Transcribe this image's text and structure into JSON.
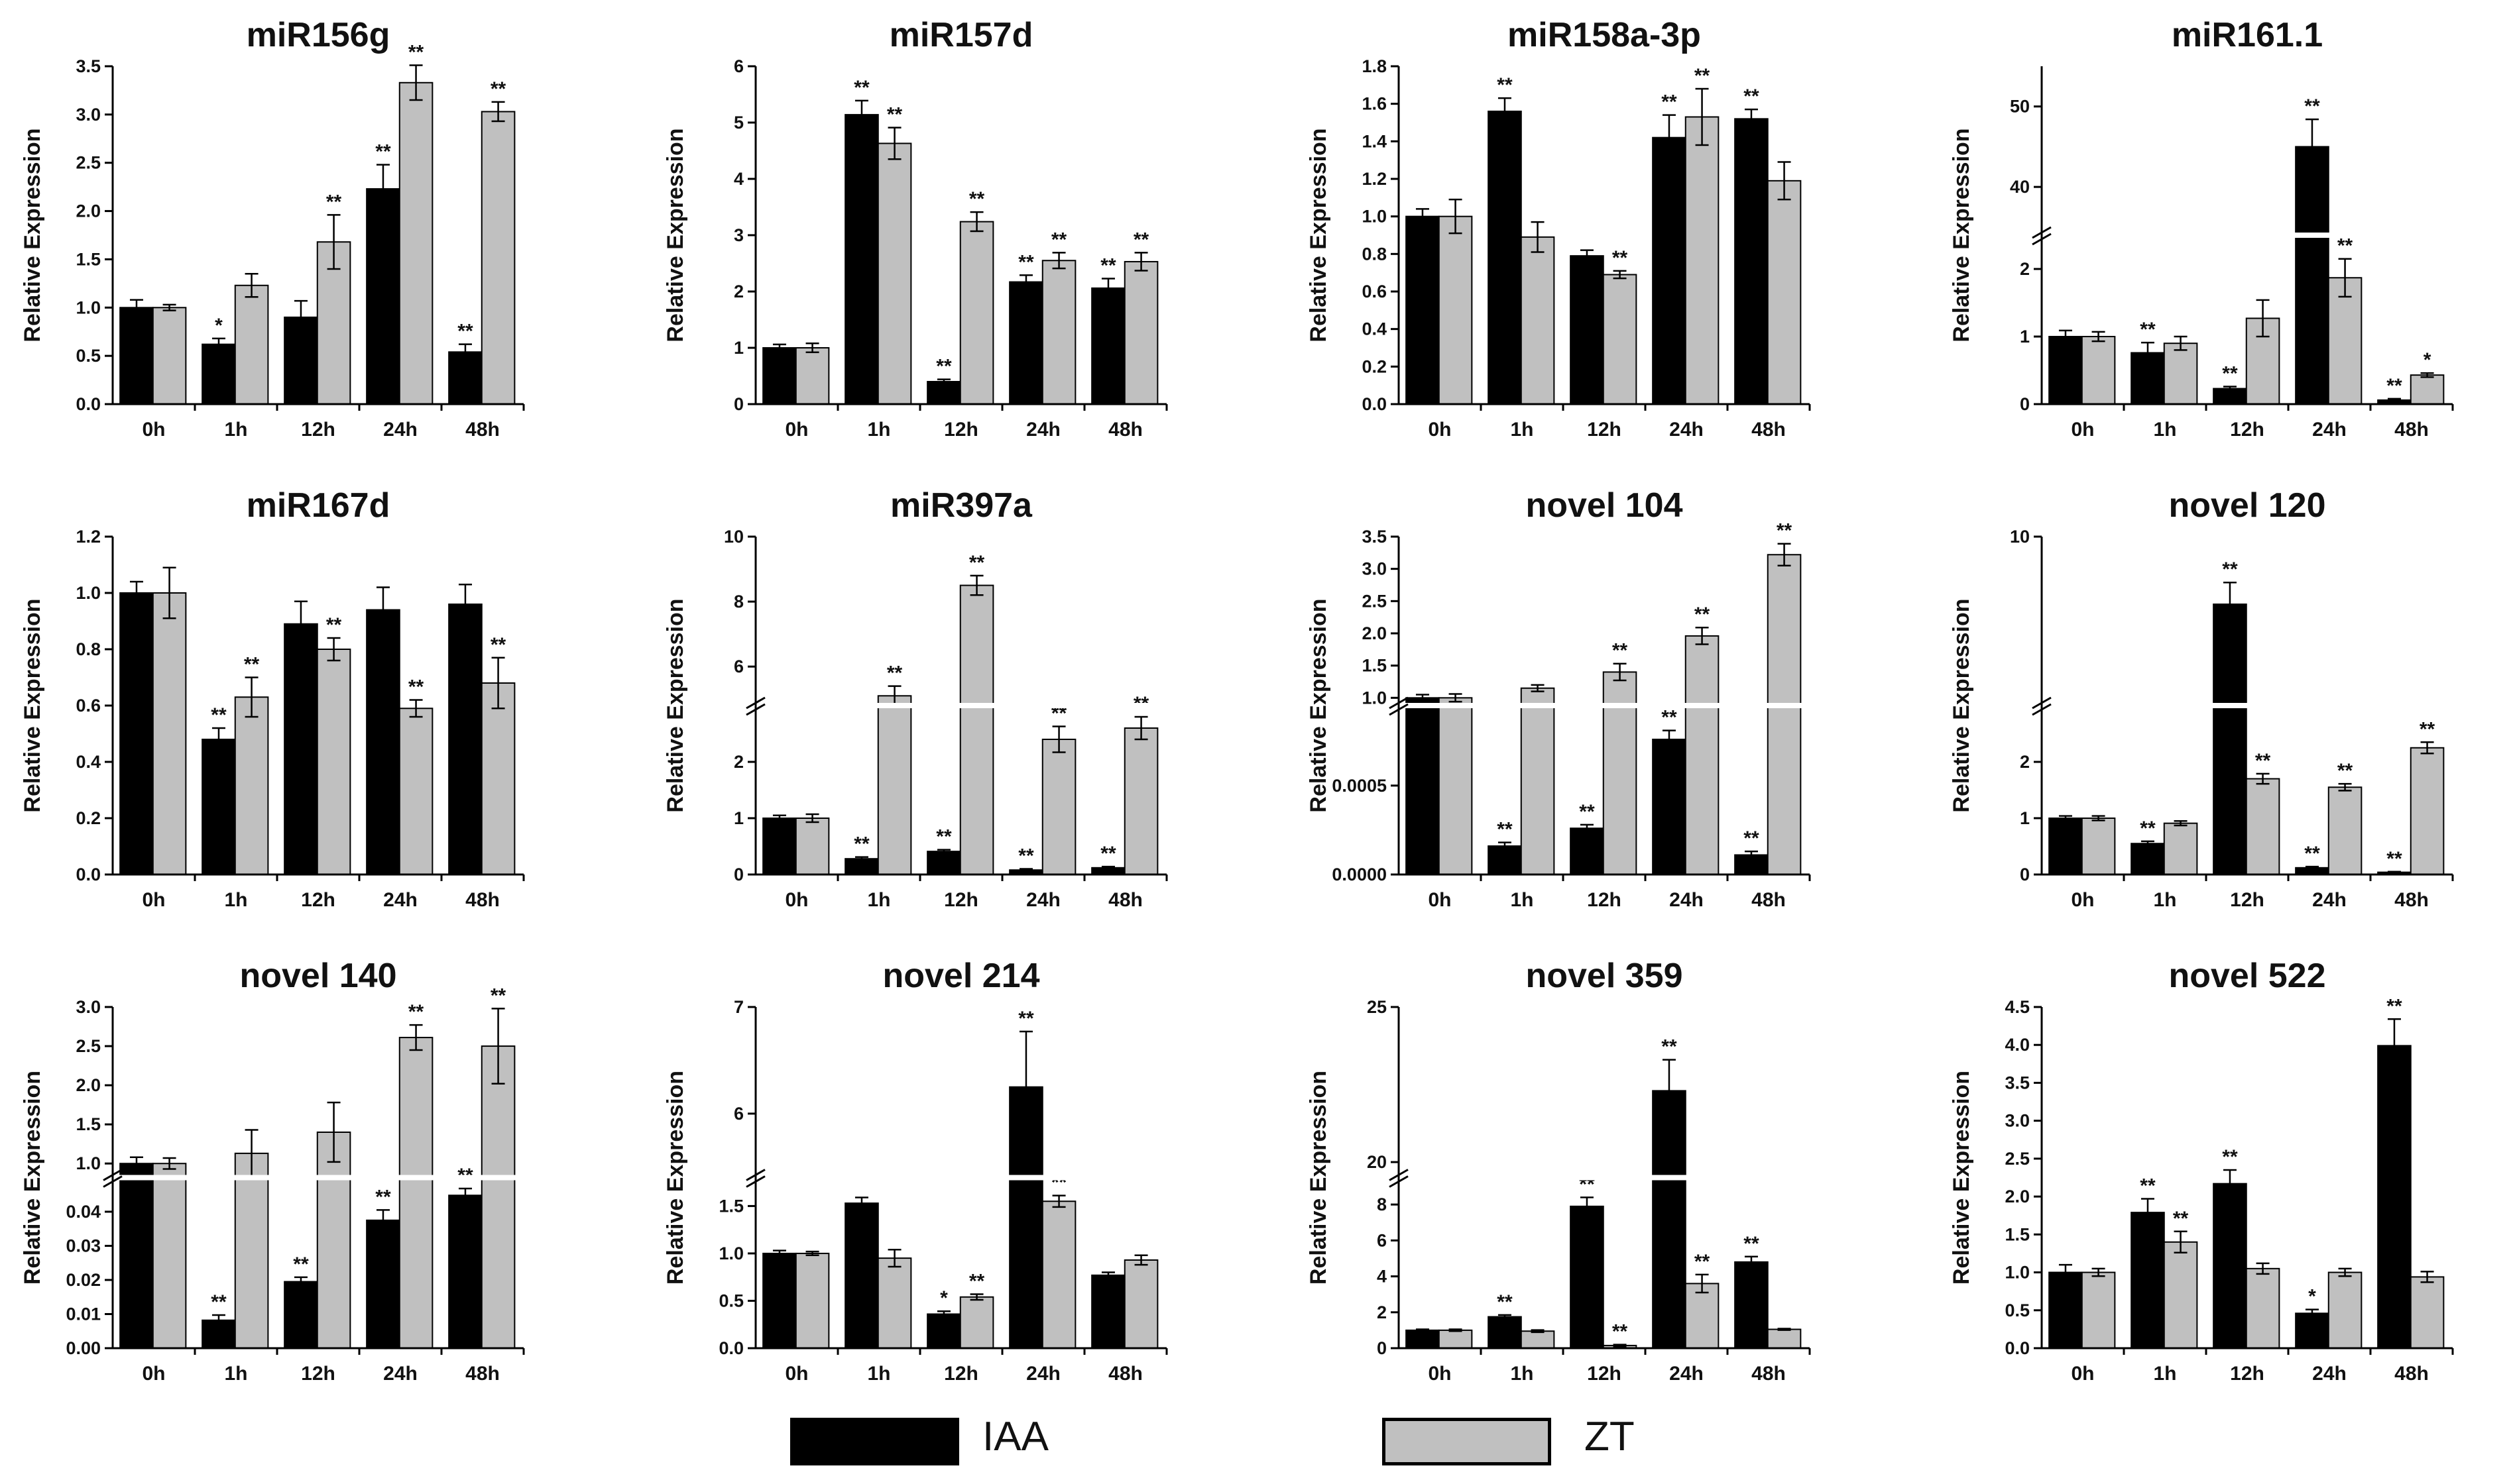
{
  "legend": [
    {
      "label": "IAA",
      "color": "#000000"
    },
    {
      "label": "ZT",
      "color": "#c0c0c0"
    }
  ],
  "colors": {
    "IAA": "#000000",
    "ZT": "#c0c0c0",
    "axis": "#000000"
  },
  "chart_data": [
    {
      "type": "bar",
      "title": "miR156g",
      "ylabel": "Relative Expression",
      "categories": [
        "0h",
        "1h",
        "12h",
        "24h",
        "48h"
      ],
      "series": [
        {
          "name": "IAA",
          "values": [
            1.0,
            0.62,
            0.9,
            2.23,
            0.54
          ],
          "errors": [
            0.08,
            0.06,
            0.17,
            0.25,
            0.08
          ],
          "sig": [
            "",
            "*",
            "",
            "**",
            "**"
          ]
        },
        {
          "name": "ZT",
          "values": [
            1.0,
            1.23,
            1.68,
            3.33,
            3.03
          ],
          "errors": [
            0.03,
            0.12,
            0.28,
            0.18,
            0.1
          ],
          "sig": [
            "",
            "",
            "**",
            "**",
            "**"
          ]
        }
      ],
      "ylim": [
        0,
        3.5
      ],
      "yticks": [
        "0.0",
        "0.5",
        "1.0",
        "1.5",
        "2.0",
        "2.5",
        "3.0",
        "3.5"
      ],
      "break": null
    },
    {
      "type": "bar",
      "title": "miR157d",
      "ylabel": "Relative Expression",
      "categories": [
        "0h",
        "1h",
        "12h",
        "24h",
        "48h"
      ],
      "series": [
        {
          "name": "IAA",
          "values": [
            1.0,
            5.14,
            0.4,
            2.17,
            2.06
          ],
          "errors": [
            0.06,
            0.25,
            0.04,
            0.12,
            0.17
          ],
          "sig": [
            "",
            "**",
            "**",
            "**",
            "**"
          ]
        },
        {
          "name": "ZT",
          "values": [
            1.0,
            4.63,
            3.24,
            2.55,
            2.53
          ],
          "errors": [
            0.08,
            0.28,
            0.17,
            0.14,
            0.16
          ],
          "sig": [
            "",
            "**",
            "**",
            "**",
            "**"
          ]
        }
      ],
      "ylim": [
        0,
        6
      ],
      "yticks": [
        "0",
        "1",
        "2",
        "3",
        "4",
        "5",
        "6"
      ],
      "break": null
    },
    {
      "type": "bar",
      "title": "miR158a-3p",
      "ylabel": "Relative Expression",
      "categories": [
        "0h",
        "1h",
        "12h",
        "24h",
        "48h"
      ],
      "series": [
        {
          "name": "IAA",
          "values": [
            1.0,
            1.56,
            0.79,
            1.42,
            1.52
          ],
          "errors": [
            0.04,
            0.07,
            0.03,
            0.12,
            0.05
          ],
          "sig": [
            "",
            "**",
            "",
            "**",
            "**"
          ]
        },
        {
          "name": "ZT",
          "values": [
            1.0,
            0.89,
            0.69,
            1.53,
            1.19
          ],
          "errors": [
            0.09,
            0.08,
            0.02,
            0.15,
            0.1
          ],
          "sig": [
            "",
            "",
            "**",
            "**",
            ""
          ]
        }
      ],
      "ylim": [
        0,
        1.8
      ],
      "yticks": [
        "0.0",
        "0.2",
        "0.4",
        "0.6",
        "0.8",
        "1.0",
        "1.2",
        "1.4",
        "1.6",
        "1.8"
      ],
      "break": null
    },
    {
      "type": "bar",
      "title": "miR161.1",
      "ylabel": "Relative Expression",
      "categories": [
        "0h",
        "1h",
        "12h",
        "24h",
        "48h"
      ],
      "series": [
        {
          "name": "IAA",
          "values": [
            1.0,
            0.76,
            0.23,
            45.0,
            0.06
          ],
          "errors": [
            0.09,
            0.15,
            0.03,
            3.4,
            0.02
          ],
          "sig": [
            "",
            "**",
            "**",
            "**",
            "**"
          ]
        },
        {
          "name": "ZT",
          "values": [
            1.0,
            0.9,
            1.27,
            1.87,
            0.43
          ],
          "errors": [
            0.07,
            0.1,
            0.27,
            0.28,
            0.03
          ],
          "sig": [
            "",
            "",
            "",
            "**",
            "*"
          ]
        }
      ],
      "ylim": [
        0,
        55
      ],
      "break": {
        "lower": [
          0,
          2.5
        ],
        "upper": [
          34,
          55
        ],
        "lowerTicks": [
          "0",
          "1",
          "2"
        ],
        "upperTicks": [
          "40",
          "50"
        ],
        "frac": 0.5
      }
    },
    {
      "type": "bar",
      "title": "miR167d",
      "ylabel": "Relative Expression",
      "categories": [
        "0h",
        "1h",
        "12h",
        "24h",
        "48h"
      ],
      "series": [
        {
          "name": "IAA",
          "values": [
            1.0,
            0.48,
            0.89,
            0.94,
            0.96
          ],
          "errors": [
            0.04,
            0.04,
            0.08,
            0.08,
            0.07
          ],
          "sig": [
            "",
            "**",
            "",
            "",
            ""
          ]
        },
        {
          "name": "ZT",
          "values": [
            1.0,
            0.63,
            0.8,
            0.59,
            0.68
          ],
          "errors": [
            0.09,
            0.07,
            0.04,
            0.03,
            0.09
          ],
          "sig": [
            "",
            "**",
            "**",
            "**",
            "**"
          ]
        }
      ],
      "ylim": [
        0,
        1.2
      ],
      "yticks": [
        "0.0",
        "0.2",
        "0.4",
        "0.6",
        "0.8",
        "1.0",
        "1.2"
      ],
      "break": null
    },
    {
      "type": "bar",
      "title": "miR397a",
      "ylabel": "Relative Expression",
      "categories": [
        "0h",
        "1h",
        "12h",
        "24h",
        "48h"
      ],
      "series": [
        {
          "name": "IAA",
          "values": [
            1.0,
            0.28,
            0.41,
            0.08,
            0.12
          ],
          "errors": [
            0.05,
            0.03,
            0.03,
            0.02,
            0.02
          ],
          "sig": [
            "",
            "**",
            "**",
            "**",
            "**"
          ]
        },
        {
          "name": "ZT",
          "values": [
            1.0,
            5.1,
            8.5,
            2.4,
            2.6
          ],
          "errors": [
            0.07,
            0.3,
            0.3,
            0.23,
            0.2
          ],
          "sig": [
            "",
            "**",
            "**",
            "**",
            "**"
          ]
        }
      ],
      "ylim": [
        0,
        10
      ],
      "break": {
        "lower": [
          0,
          3
        ],
        "upper": [
          4.8,
          10
        ],
        "lowerTicks": [
          "0",
          "1",
          "2"
        ],
        "upperTicks": [
          "6",
          "8",
          "10"
        ],
        "frac": 0.5
      }
    },
    {
      "type": "bar",
      "title": "novel 104",
      "ylabel": "Relative Expression",
      "categories": [
        "0h",
        "1h",
        "12h",
        "24h",
        "48h"
      ],
      "series": [
        {
          "name": "IAA",
          "values": [
            1.0,
            0.00016,
            0.00026,
            0.00076,
            0.00011
          ],
          "errors": [
            0.05,
            2e-05,
            2e-05,
            5e-05,
            2e-05
          ],
          "sig": [
            "",
            "**",
            "**",
            "**",
            "**"
          ]
        },
        {
          "name": "ZT",
          "values": [
            1.0,
            1.15,
            1.4,
            1.96,
            3.22
          ],
          "errors": [
            0.06,
            0.05,
            0.13,
            0.13,
            0.17
          ],
          "sig": [
            "",
            "",
            "**",
            "**",
            "**"
          ]
        }
      ],
      "ylim": [
        0,
        3.5
      ],
      "break": {
        "lower": [
          0,
          0.00095
        ],
        "upper": [
          0.88,
          3.5
        ],
        "lowerTicks": [
          "0.0000",
          "0.0005"
        ],
        "upperTicks": [
          "1.0",
          "1.5",
          "2.0",
          "2.5",
          "3.0",
          "3.5"
        ],
        "frac": 0.5
      }
    },
    {
      "type": "bar",
      "title": "novel 120",
      "ylabel": "Relative Expression",
      "categories": [
        "0h",
        "1h",
        "12h",
        "24h",
        "48h"
      ],
      "series": [
        {
          "name": "IAA",
          "values": [
            1.0,
            0.55,
            7.2,
            0.12,
            0.04
          ],
          "errors": [
            0.04,
            0.04,
            0.9,
            0.02,
            0.01
          ],
          "sig": [
            "",
            "**",
            "**",
            "**",
            "**"
          ]
        },
        {
          "name": "ZT",
          "values": [
            1.0,
            0.91,
            1.7,
            1.55,
            2.25
          ],
          "errors": [
            0.04,
            0.04,
            0.09,
            0.06,
            0.1
          ],
          "sig": [
            "",
            "",
            "**",
            "**",
            "**"
          ]
        }
      ],
      "ylim": [
        0,
        10
      ],
      "break": {
        "lower": [
          0,
          3
        ],
        "upper": [
          3,
          10
        ],
        "lowerTicks": [
          "0",
          "1",
          "2"
        ],
        "upperTicks": [
          "10"
        ],
        "frac": 0.5
      }
    },
    {
      "type": "bar",
      "title": "novel 140",
      "ylabel": "Relative Expression",
      "categories": [
        "0h",
        "1h",
        "12h",
        "24h",
        "48h"
      ],
      "series": [
        {
          "name": "IAA",
          "values": [
            1.0,
            0.0082,
            0.0195,
            0.0375,
            0.0448
          ],
          "errors": [
            0.08,
            0.0015,
            0.0013,
            0.003,
            0.002
          ],
          "sig": [
            "",
            "**",
            "**",
            "**",
            "**"
          ]
        },
        {
          "name": "ZT",
          "values": [
            1.0,
            1.13,
            1.4,
            2.61,
            2.5
          ],
          "errors": [
            0.07,
            0.3,
            0.38,
            0.16,
            0.48
          ],
          "sig": [
            "",
            "",
            "",
            "**",
            "**"
          ]
        }
      ],
      "ylim": [
        0,
        3.0
      ],
      "break": {
        "lower": [
          0,
          0.05
        ],
        "upper": [
          0.82,
          3.0
        ],
        "lowerTicks": [
          "0.00",
          "0.01",
          "0.02",
          "0.03",
          "0.04"
        ],
        "upperTicks": [
          "1.0",
          "1.5",
          "2.0",
          "2.5",
          "3.0"
        ],
        "frac": 0.5
      }
    },
    {
      "type": "bar",
      "title": "novel 214",
      "ylabel": "Relative Expression",
      "categories": [
        "0h",
        "1h",
        "12h",
        "24h",
        "48h"
      ],
      "series": [
        {
          "name": "IAA",
          "values": [
            1.0,
            1.53,
            0.36,
            6.25,
            0.77
          ],
          "errors": [
            0.03,
            0.06,
            0.03,
            0.52,
            0.03
          ],
          "sig": [
            "",
            "",
            "*",
            "**",
            ""
          ]
        },
        {
          "name": "ZT",
          "values": [
            1.0,
            0.95,
            0.54,
            1.55,
            0.93
          ],
          "errors": [
            0.02,
            0.09,
            0.03,
            0.06,
            0.05
          ],
          "sig": [
            "",
            "",
            "**",
            "**",
            ""
          ]
        }
      ],
      "ylim": [
        0,
        7
      ],
      "break": {
        "lower": [
          0,
          1.8
        ],
        "upper": [
          5.4,
          7
        ],
        "lowerTicks": [
          "0.0",
          "0.5",
          "1.0",
          "1.5"
        ],
        "upperTicks": [
          "6",
          "7"
        ],
        "frac": 0.5
      }
    },
    {
      "type": "bar",
      "title": "novel 359",
      "ylabel": "Relative Expression",
      "categories": [
        "0h",
        "1h",
        "12h",
        "24h",
        "48h"
      ],
      "series": [
        {
          "name": "IAA",
          "values": [
            1.0,
            1.75,
            7.9,
            22.3,
            4.8
          ],
          "errors": [
            0.05,
            0.1,
            0.5,
            1.0,
            0.3
          ],
          "sig": [
            "",
            "**",
            "**",
            "**",
            "**"
          ]
        },
        {
          "name": "ZT",
          "values": [
            1.0,
            0.95,
            0.15,
            3.6,
            1.05
          ],
          "errors": [
            0.05,
            0.06,
            0.05,
            0.5,
            0.04
          ],
          "sig": [
            "",
            "",
            "**",
            "**",
            ""
          ]
        }
      ],
      "ylim": [
        0,
        25
      ],
      "break": {
        "lower": [
          0,
          9.5
        ],
        "upper": [
          19.5,
          25
        ],
        "lowerTicks": [
          "0",
          "2",
          "4",
          "6",
          "8"
        ],
        "upperTicks": [
          "20",
          "25"
        ],
        "frac": 0.5
      }
    },
    {
      "type": "bar",
      "title": "novel 522",
      "ylabel": "Relative Expression",
      "categories": [
        "0h",
        "1h",
        "12h",
        "24h",
        "48h"
      ],
      "series": [
        {
          "name": "IAA",
          "values": [
            1.0,
            1.79,
            2.17,
            0.46,
            3.99
          ],
          "errors": [
            0.1,
            0.18,
            0.18,
            0.05,
            0.35
          ],
          "sig": [
            "",
            "**",
            "**",
            "*",
            "**"
          ]
        },
        {
          "name": "ZT",
          "values": [
            1.0,
            1.4,
            1.05,
            1.0,
            0.94
          ],
          "errors": [
            0.05,
            0.14,
            0.07,
            0.05,
            0.07
          ],
          "sig": [
            "",
            "**",
            "",
            "",
            ""
          ]
        }
      ],
      "ylim": [
        0,
        4.5
      ],
      "yticks": [
        "0.0",
        "0.5",
        "1.0",
        "1.5",
        "2.0",
        "2.5",
        "3.0",
        "3.5",
        "4.0",
        "4.5"
      ],
      "break": null
    }
  ]
}
